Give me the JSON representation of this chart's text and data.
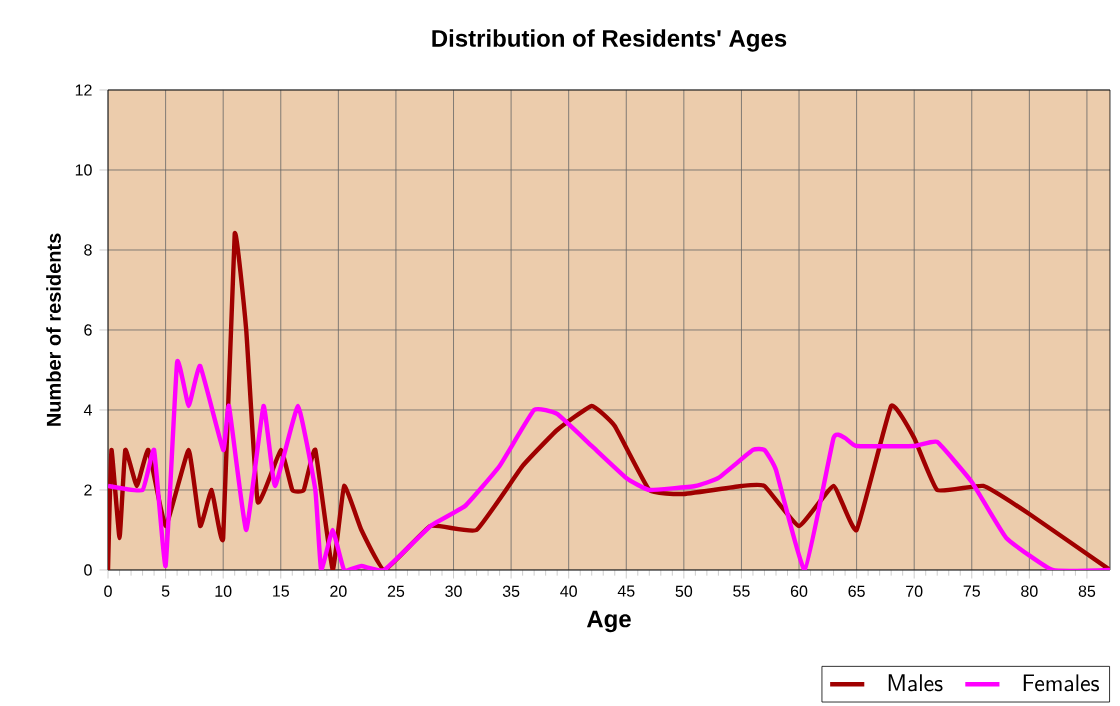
{
  "chart_data": {
    "type": "line",
    "title": "Distribution of Residents' Ages",
    "xlabel": "Age",
    "ylabel": "Number of residents",
    "xlim": [
      0,
      87
    ],
    "xticks": [
      0,
      5,
      10,
      15,
      20,
      25,
      30,
      35,
      40,
      45,
      50,
      55,
      60,
      65,
      70,
      75,
      80,
      85
    ],
    "ylim": [
      0,
      12
    ],
    "yticks": [
      0,
      2,
      4,
      6,
      8,
      10,
      12
    ],
    "grid": true,
    "legend": "bottom right",
    "marker": "none",
    "line_style": "solid",
    "series": [
      {
        "name": "Males",
        "color": "#a00000",
        "x": [
          0,
          0.3,
          1,
          1.5,
          2.5,
          3.5,
          5,
          7,
          8,
          9,
          10,
          11,
          12,
          13,
          15,
          16,
          17,
          18,
          19.5,
          20.5,
          22,
          24,
          28,
          32,
          36,
          39,
          42,
          44,
          47,
          50,
          55,
          57,
          60,
          63,
          65,
          68,
          70,
          72,
          76,
          80,
          87
        ],
        "values": [
          0,
          3,
          0.8,
          3,
          2.1,
          3,
          1.1,
          3,
          1.1,
          2,
          0.8,
          8.4,
          6,
          1.7,
          3,
          2,
          2,
          3,
          0,
          2.1,
          1,
          0,
          1.1,
          1,
          2.6,
          3.5,
          4.1,
          3.6,
          2,
          1.9,
          2.1,
          2.1,
          1.1,
          2.1,
          1,
          4.1,
          3.3,
          2,
          2.1,
          1.4,
          0
        ]
      },
      {
        "name": "Females",
        "color": "#ff00ff",
        "x": [
          0,
          3,
          4,
          5,
          6,
          7,
          8,
          10,
          10.5,
          12,
          13.5,
          14.5,
          16.5,
          18,
          18.5,
          19.5,
          20.5,
          22,
          24,
          28,
          31,
          34,
          37,
          39,
          42,
          45,
          47,
          51,
          53,
          56,
          57,
          58,
          60.5,
          63,
          64,
          65,
          70,
          72,
          75,
          78,
          82,
          87
        ],
        "values": [
          2.1,
          2,
          3,
          0.1,
          5.2,
          4.1,
          5.1,
          3,
          4.1,
          1,
          4.1,
          2.1,
          4.1,
          2,
          0,
          1,
          0,
          0.1,
          0,
          1.1,
          1.6,
          2.6,
          4,
          3.9,
          3.1,
          2.3,
          2,
          2.1,
          2.3,
          3,
          3,
          2.5,
          0,
          3.3,
          3.3,
          3.1,
          3.1,
          3.2,
          2.2,
          0.8,
          0,
          0
        ]
      }
    ]
  }
}
